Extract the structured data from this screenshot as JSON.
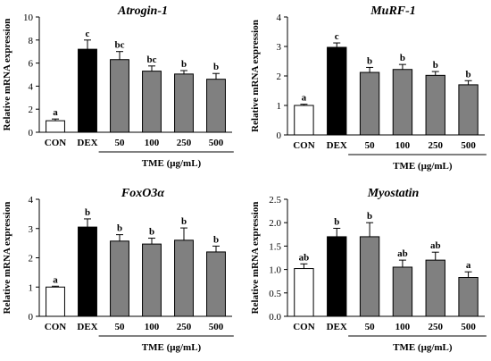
{
  "chart_data": [
    {
      "type": "bar",
      "title": "Atrogin-1",
      "ylabel": "Relative mRNA expression",
      "xlabel": "TME (μg/mL)",
      "categories": [
        "CON",
        "DEX",
        "50",
        "100",
        "250",
        "500"
      ],
      "values": [
        1.0,
        7.2,
        6.3,
        5.3,
        5.05,
        4.6
      ],
      "errors": [
        0.15,
        0.8,
        0.7,
        0.45,
        0.3,
        0.5
      ],
      "significance": [
        "a",
        "c",
        "bc",
        "bc",
        "b",
        "b"
      ],
      "ylim": [
        0,
        10
      ],
      "yticks": [
        "0",
        "2",
        "4",
        "6",
        "8",
        "10"
      ],
      "bar_fill": [
        "#ffffff",
        "#000000",
        "#808080",
        "#808080",
        "#808080",
        "#808080"
      ]
    },
    {
      "type": "bar",
      "title": "MuRF-1",
      "ylabel": "Relative mRNA expression",
      "xlabel": "TME (μg/mL)",
      "categories": [
        "CON",
        "DEX",
        "50",
        "100",
        "250",
        "500"
      ],
      "values": [
        1.0,
        2.97,
        2.12,
        2.22,
        2.02,
        1.7
      ],
      "errors": [
        0.04,
        0.15,
        0.17,
        0.17,
        0.13,
        0.14
      ],
      "significance": [
        "a",
        "c",
        "b",
        "b",
        "b",
        "b"
      ],
      "ylim": [
        0,
        4
      ],
      "yticks": [
        "0",
        "1",
        "2",
        "3",
        "4"
      ],
      "bar_fill": [
        "#ffffff",
        "#000000",
        "#808080",
        "#808080",
        "#808080",
        "#808080"
      ]
    },
    {
      "type": "bar",
      "title": "FoxO3α",
      "ylabel": "Relative mRNA expression",
      "xlabel": "TME (μg/mL)",
      "categories": [
        "CON",
        "DEX",
        "50",
        "100",
        "250",
        "500"
      ],
      "values": [
        1.0,
        3.05,
        2.57,
        2.47,
        2.6,
        2.2
      ],
      "errors": [
        0.03,
        0.28,
        0.22,
        0.2,
        0.42,
        0.2
      ],
      "significance": [
        "a",
        "b",
        "b",
        "b",
        "b",
        "b"
      ],
      "ylim": [
        0,
        4
      ],
      "yticks": [
        "0",
        "1",
        "2",
        "3",
        "4"
      ],
      "bar_fill": [
        "#ffffff",
        "#000000",
        "#808080",
        "#808080",
        "#808080",
        "#808080"
      ]
    },
    {
      "type": "bar",
      "title": "Myostatin",
      "ylabel": "Relative mRNA expression",
      "xlabel": "TME (μg/mL)",
      "categories": [
        "CON",
        "DEX",
        "50",
        "100",
        "250",
        "500"
      ],
      "values": [
        1.02,
        1.7,
        1.7,
        1.05,
        1.2,
        0.83
      ],
      "errors": [
        0.1,
        0.18,
        0.3,
        0.15,
        0.17,
        0.12
      ],
      "significance": [
        "ab",
        "b",
        "b",
        "ab",
        "ab",
        "a"
      ],
      "ylim": [
        0,
        2.5
      ],
      "yticks": [
        "0.0",
        "0.5",
        "1.0",
        "1.5",
        "2.0",
        "2.5"
      ],
      "bar_fill": [
        "#ffffff",
        "#000000",
        "#808080",
        "#808080",
        "#808080",
        "#808080"
      ]
    }
  ]
}
